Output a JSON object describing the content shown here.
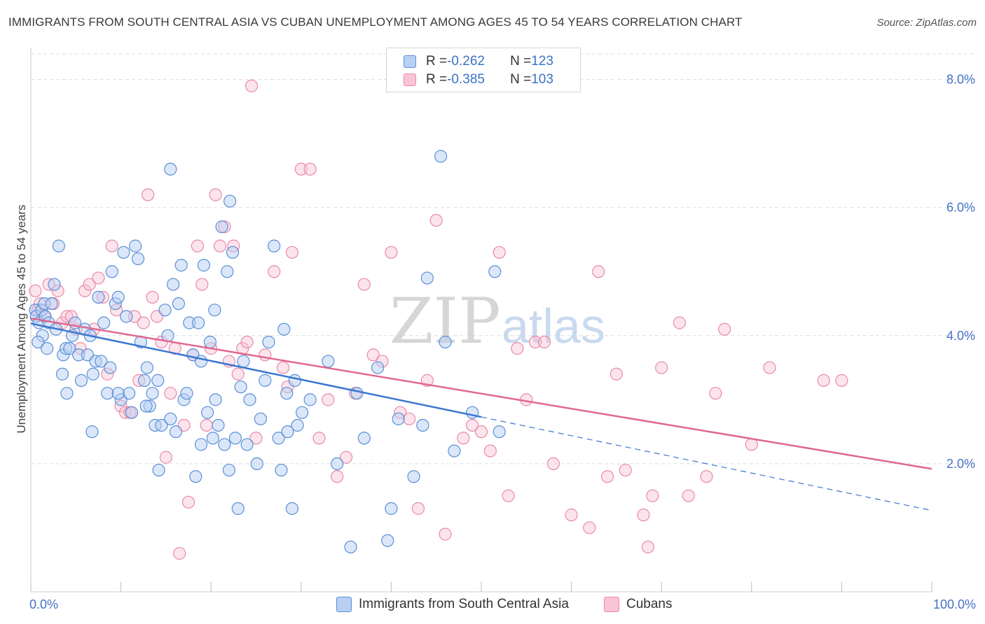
{
  "title": "IMMIGRANTS FROM SOUTH CENTRAL ASIA VS CUBAN UNEMPLOYMENT AMONG AGES 45 TO 54 YEARS CORRELATION CHART",
  "source": "Source: ZipAtlas.com",
  "watermark": {
    "zip": "ZIP",
    "atlas": "atlas"
  },
  "legend": {
    "rows": [
      {
        "r_label": "R = ",
        "r_value": "-0.262",
        "n_label": "N = ",
        "n_value": "123"
      },
      {
        "r_label": "R = ",
        "r_value": "-0.385",
        "n_label": "N = ",
        "n_value": "103"
      }
    ]
  },
  "bottom_legend": [
    "Immigrants from South Central Asia",
    "Cubans"
  ],
  "colors": {
    "blue_fill": "#b8d0f3",
    "blue_stroke": "#5b8fd6",
    "blue_line": "#3a76d0",
    "pink_fill": "#f9c4d4",
    "pink_stroke": "#e98aa8",
    "pink_line": "#e06890",
    "grid": "#dddddd",
    "axis_text": "#4472c4"
  },
  "chart_data": {
    "type": "scatter",
    "title": "IMMIGRANTS FROM SOUTH CENTRAL ASIA VS CUBAN UNEMPLOYMENT AMONG AGES 45 TO 54 YEARS CORRELATION CHART",
    "xlabel": "",
    "ylabel": "Unemployment Among Ages 45 to 54 years",
    "xlim": [
      0,
      100
    ],
    "ylim": [
      0,
      8.4
    ],
    "x_tick_labels": [
      "0.0%",
      "100.0%"
    ],
    "y_ticks": [
      2,
      4,
      6,
      8
    ],
    "y_tick_labels": [
      "2.0%",
      "4.0%",
      "6.0%",
      "8.0%"
    ],
    "grid": true,
    "legend_position": "top-center",
    "series": [
      {
        "name": "Immigrants from South Central Asia",
        "r": -0.262,
        "n": 123,
        "trend": {
          "x_start": 0,
          "y_start": 4.19,
          "x_solid_end": 50,
          "y_solid_end": 2.73,
          "x_end": 100,
          "y_end": 1.27
        },
        "points": [
          [
            0.5,
            4.4
          ],
          [
            0.6,
            4.3
          ],
          [
            0.9,
            4.2
          ],
          [
            1.2,
            4.4
          ],
          [
            1.3,
            4.0
          ],
          [
            1.5,
            4.5
          ],
          [
            1.6,
            4.3
          ],
          [
            2,
            4.2
          ],
          [
            2.3,
            4.5
          ],
          [
            2.6,
            4.8
          ],
          [
            2.8,
            4.1
          ],
          [
            3.1,
            5.4
          ],
          [
            3.5,
            3.4
          ],
          [
            3.6,
            3.7
          ],
          [
            3.9,
            3.8
          ],
          [
            4.3,
            3.8
          ],
          [
            4.6,
            4.0
          ],
          [
            4.9,
            4.2
          ],
          [
            5.3,
            3.7
          ],
          [
            5.6,
            3.3
          ],
          [
            6,
            4.1
          ],
          [
            6.3,
            3.7
          ],
          [
            6.6,
            4.0
          ],
          [
            6.9,
            3.4
          ],
          [
            7.2,
            3.6
          ],
          [
            7.5,
            4.6
          ],
          [
            7.8,
            3.6
          ],
          [
            8.1,
            4.2
          ],
          [
            8.5,
            3.1
          ],
          [
            8.8,
            3.5
          ],
          [
            9,
            5.0
          ],
          [
            9.4,
            4.5
          ],
          [
            9.7,
            4.6
          ],
          [
            10,
            3.0
          ],
          [
            10.3,
            5.3
          ],
          [
            10.6,
            4.3
          ],
          [
            10.9,
            3.1
          ],
          [
            11.2,
            2.8
          ],
          [
            11.6,
            5.4
          ],
          [
            11.9,
            5.2
          ],
          [
            12.2,
            3.9
          ],
          [
            12.6,
            3.3
          ],
          [
            12.9,
            3.5
          ],
          [
            13.2,
            2.9
          ],
          [
            13.5,
            3.1
          ],
          [
            13.8,
            2.6
          ],
          [
            14.2,
            1.9
          ],
          [
            14.5,
            2.6
          ],
          [
            14.9,
            4.4
          ],
          [
            15.2,
            4.0
          ],
          [
            15.5,
            6.6
          ],
          [
            15.8,
            4.8
          ],
          [
            16.1,
            2.5
          ],
          [
            16.4,
            4.5
          ],
          [
            16.7,
            5.1
          ],
          [
            17,
            3.0
          ],
          [
            17.3,
            3.1
          ],
          [
            17.6,
            4.2
          ],
          [
            18,
            3.7
          ],
          [
            18.3,
            1.8
          ],
          [
            18.6,
            4.2
          ],
          [
            18.9,
            3.6
          ],
          [
            19.2,
            5.1
          ],
          [
            19.6,
            2.8
          ],
          [
            19.9,
            3.9
          ],
          [
            20.2,
            2.4
          ],
          [
            20.5,
            3.0
          ],
          [
            20.8,
            2.6
          ],
          [
            21.2,
            5.7
          ],
          [
            21.5,
            2.3
          ],
          [
            21.8,
            5.0
          ],
          [
            22.1,
            6.1
          ],
          [
            22.4,
            5.3
          ],
          [
            22.7,
            2.4
          ],
          [
            23,
            1.3
          ],
          [
            23.3,
            3.2
          ],
          [
            23.6,
            3.6
          ],
          [
            24,
            2.3
          ],
          [
            24.3,
            3.0
          ],
          [
            25.5,
            2.7
          ],
          [
            26,
            3.3
          ],
          [
            26.4,
            3.9
          ],
          [
            27,
            5.4
          ],
          [
            27.5,
            2.4
          ],
          [
            27.8,
            1.9
          ],
          [
            28.1,
            4.1
          ],
          [
            28.5,
            2.5
          ],
          [
            29,
            1.3
          ],
          [
            29.3,
            3.3
          ],
          [
            29.6,
            2.6
          ],
          [
            30.1,
            2.8
          ],
          [
            31,
            3.0
          ],
          [
            34,
            2.0
          ],
          [
            35.5,
            0.7
          ],
          [
            36.2,
            3.1
          ],
          [
            38.5,
            3.5
          ],
          [
            39.6,
            0.8
          ],
          [
            40,
            1.3
          ],
          [
            40.8,
            2.7
          ],
          [
            43.5,
            2.6
          ],
          [
            45.5,
            6.8
          ],
          [
            46,
            3.9
          ],
          [
            49,
            2.8
          ],
          [
            51.5,
            5.0
          ],
          [
            44,
            4.9
          ],
          [
            0.8,
            3.9
          ],
          [
            1.8,
            3.8
          ],
          [
            4,
            3.1
          ],
          [
            6.8,
            2.5
          ],
          [
            9.7,
            3.1
          ],
          [
            12.8,
            2.9
          ],
          [
            15.5,
            2.7
          ],
          [
            18.9,
            2.3
          ],
          [
            22,
            1.9
          ],
          [
            25.1,
            2.0
          ],
          [
            28.4,
            3.1
          ],
          [
            33,
            3.6
          ],
          [
            37,
            2.4
          ],
          [
            42.5,
            1.8
          ],
          [
            47,
            2.2
          ],
          [
            52,
            2.5
          ],
          [
            14.1,
            3.3
          ],
          [
            20.4,
            4.4
          ]
        ]
      },
      {
        "name": "Cubans",
        "r": -0.385,
        "n": 103,
        "trend": {
          "x_start": 0,
          "y_start": 4.27,
          "x_solid_end": 100,
          "y_solid_end": 1.92,
          "x_end": 100,
          "y_end": 1.92
        },
        "points": [
          [
            0.5,
            4.7
          ],
          [
            0.8,
            4.4
          ],
          [
            1,
            4.5
          ],
          [
            1.5,
            4.3
          ],
          [
            2,
            4.8
          ],
          [
            2.5,
            4.5
          ],
          [
            3,
            4.7
          ],
          [
            3.5,
            4.2
          ],
          [
            4,
            4.3
          ],
          [
            4.5,
            4.3
          ],
          [
            5,
            4.1
          ],
          [
            5.5,
            3.8
          ],
          [
            6,
            4.7
          ],
          [
            6.5,
            4.8
          ],
          [
            7,
            4.1
          ],
          [
            7.5,
            4.9
          ],
          [
            8,
            4.6
          ],
          [
            8.5,
            3.4
          ],
          [
            9,
            5.4
          ],
          [
            9.5,
            4.4
          ],
          [
            10,
            2.9
          ],
          [
            10.5,
            2.8
          ],
          [
            11,
            2.8
          ],
          [
            11.5,
            4.3
          ],
          [
            12,
            3.3
          ],
          [
            12.5,
            4.2
          ],
          [
            13,
            6.2
          ],
          [
            13.5,
            4.6
          ],
          [
            14,
            4.3
          ],
          [
            14.5,
            3.9
          ],
          [
            15,
            2.1
          ],
          [
            15.5,
            3.1
          ],
          [
            16,
            3.8
          ],
          [
            16.5,
            0.6
          ],
          [
            17,
            2.6
          ],
          [
            17.5,
            1.4
          ],
          [
            18,
            3.7
          ],
          [
            18.5,
            5.4
          ],
          [
            19,
            4.8
          ],
          [
            19.5,
            2.6
          ],
          [
            20,
            3.8
          ],
          [
            20.5,
            6.2
          ],
          [
            21,
            5.4
          ],
          [
            21.5,
            5.7
          ],
          [
            22,
            3.6
          ],
          [
            22.5,
            5.4
          ],
          [
            23,
            3.4
          ],
          [
            23.5,
            3.8
          ],
          [
            24,
            3.9
          ],
          [
            24.5,
            7.9
          ],
          [
            25,
            2.4
          ],
          [
            26,
            3.7
          ],
          [
            27,
            5.0
          ],
          [
            28,
            3.5
          ],
          [
            28.5,
            3.2
          ],
          [
            29,
            5.3
          ],
          [
            30,
            6.6
          ],
          [
            31,
            6.6
          ],
          [
            32,
            2.4
          ],
          [
            33,
            3.0
          ],
          [
            34,
            1.8
          ],
          [
            35,
            2.1
          ],
          [
            36,
            3.1
          ],
          [
            37,
            4.8
          ],
          [
            38,
            3.7
          ],
          [
            39,
            3.6
          ],
          [
            40,
            5.3
          ],
          [
            41,
            2.8
          ],
          [
            42,
            2.7
          ],
          [
            43,
            1.3
          ],
          [
            44,
            3.3
          ],
          [
            45,
            5.8
          ],
          [
            46,
            0.9
          ],
          [
            48,
            2.4
          ],
          [
            49,
            2.6
          ],
          [
            50,
            2.5
          ],
          [
            51,
            2.2
          ],
          [
            52,
            5.3
          ],
          [
            53,
            1.5
          ],
          [
            54,
            3.8
          ],
          [
            55,
            3.0
          ],
          [
            56,
            3.9
          ],
          [
            57,
            3.9
          ],
          [
            58,
            2.0
          ],
          [
            60,
            1.2
          ],
          [
            62,
            1.0
          ],
          [
            63,
            5.0
          ],
          [
            64,
            1.8
          ],
          [
            65,
            3.4
          ],
          [
            66,
            1.9
          ],
          [
            68,
            1.2
          ],
          [
            68.5,
            0.7
          ],
          [
            69,
            1.5
          ],
          [
            70,
            3.5
          ],
          [
            72,
            4.2
          ],
          [
            73,
            1.5
          ],
          [
            75,
            1.8
          ],
          [
            76,
            3.1
          ],
          [
            77,
            4.1
          ],
          [
            80,
            2.3
          ],
          [
            82,
            3.5
          ],
          [
            88,
            3.3
          ],
          [
            90,
            3.3
          ]
        ]
      }
    ]
  }
}
